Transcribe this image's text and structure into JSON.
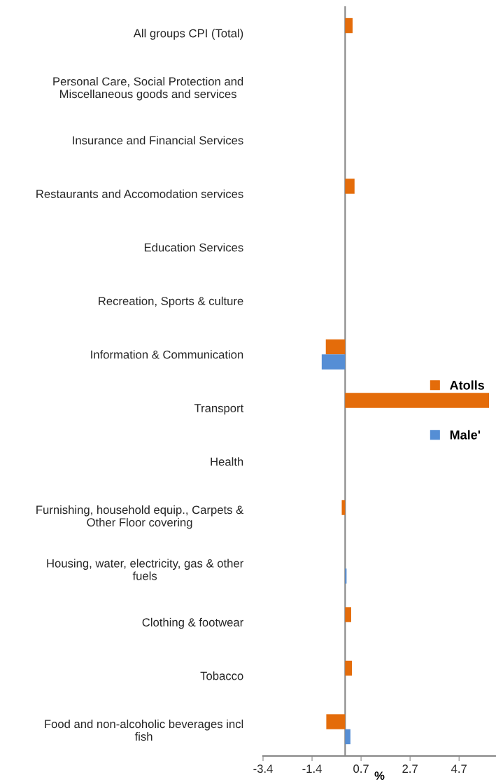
{
  "chart_data": {
    "type": "bar",
    "orientation": "horizontal",
    "xlabel": "%",
    "categories": [
      "All groups CPI (Total)",
      "Personal Care, Social Protection and\nMiscellaneous goods and services",
      "Insurance and Financial Services",
      "Restaurants and Accomodation services",
      "Education Services",
      "Recreation, Sports & culture",
      "Information & Communication",
      "Transport",
      "Health",
      "Furnishing, household equip., Carpets &\nOther Floor covering",
      "Housing, water, electricity, gas & other\nfuels",
      "Clothing & footwear",
      "Tobacco",
      "Food and non-alcoholic beverages incl\nfish"
    ],
    "series": [
      {
        "name": "Atolls",
        "color": "#e46c0a",
        "values": [
          0.31,
          0,
          0,
          0.39,
          0,
          0,
          -0.8,
          5.96,
          0,
          -0.14,
          0,
          0.25,
          0.28,
          -0.78
        ]
      },
      {
        "name": "Male'",
        "color": "#558ed5",
        "values": [
          0,
          0,
          0,
          0,
          0,
          0,
          -0.97,
          0,
          0,
          0,
          0.06,
          0,
          0,
          0.22
        ]
      }
    ],
    "xlim": [
      -3.4,
      6.25
    ],
    "xticks": [
      {
        "value": -3.4,
        "label": "-3.4"
      },
      {
        "value": -1.37,
        "label": "-1.4"
      },
      {
        "value": 0.66,
        "label": "0.7"
      },
      {
        "value": 2.69,
        "label": "2.7"
      },
      {
        "value": 4.72,
        "label": "4.7"
      }
    ],
    "grid": false,
    "legend": "right"
  }
}
